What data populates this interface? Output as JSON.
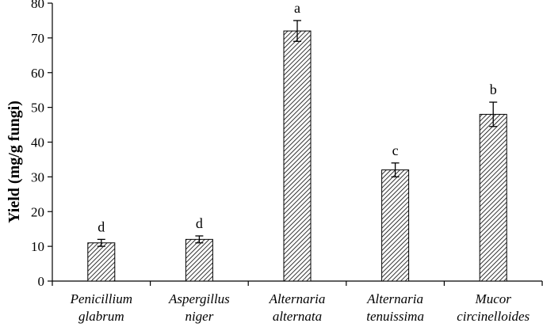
{
  "chart_data": {
    "type": "bar",
    "categories": [
      [
        "Penicillium",
        "glabrum"
      ],
      [
        "Aspergillus",
        "niger"
      ],
      [
        "Alternaria",
        "alternata"
      ],
      [
        "Alternaria",
        "tenuissima"
      ],
      [
        "Mucor",
        "circinelloides"
      ]
    ],
    "values": [
      11,
      12,
      72,
      32,
      48
    ],
    "errors": [
      1,
      1,
      3,
      2,
      3.5
    ],
    "significance": [
      "d",
      "d",
      "a",
      "c",
      "b"
    ],
    "ylabel": "Yield (mg/g fungi)",
    "ylim": [
      0,
      80
    ],
    "yticks": [
      0,
      10,
      20,
      30,
      40,
      50,
      60,
      70,
      80
    ],
    "grid": false,
    "bar_pattern": "diagonal-hatch",
    "bar_color": "#000000"
  }
}
